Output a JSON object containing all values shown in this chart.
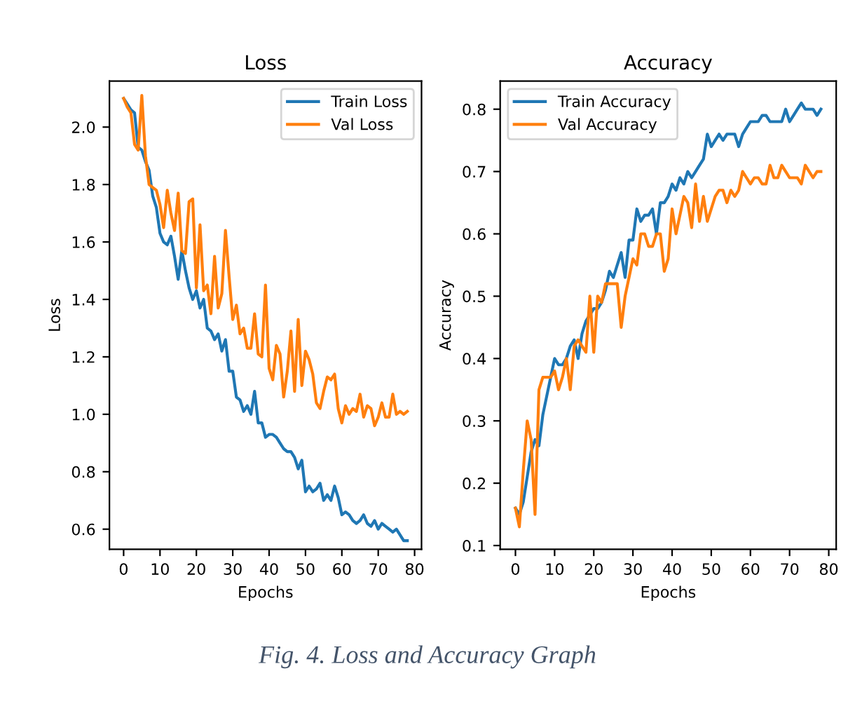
{
  "chart_data": [
    {
      "type": "line",
      "title": "Loss",
      "xlabel": "Epochs",
      "ylabel": "Loss",
      "legend": "top right",
      "grid": false,
      "marker": "none",
      "line_style": "solid",
      "x": [
        0,
        1,
        2,
        3,
        4,
        5,
        6,
        7,
        8,
        9,
        10,
        11,
        12,
        13,
        14,
        15,
        16,
        17,
        18,
        19,
        20,
        21,
        22,
        23,
        24,
        25,
        26,
        27,
        28,
        29,
        30,
        31,
        32,
        33,
        34,
        35,
        36,
        37,
        38,
        39,
        40,
        41,
        42,
        43,
        44,
        45,
        46,
        47,
        48,
        49,
        50,
        51,
        52,
        53,
        54,
        55,
        56,
        57,
        58,
        59,
        60,
        61,
        62,
        63,
        64,
        65,
        66,
        67,
        68,
        69,
        70,
        71,
        72,
        73,
        74,
        75,
        76,
        77,
        78
      ],
      "xlim": [
        -3.9,
        81.9
      ],
      "xticks": [
        0,
        10,
        20,
        30,
        40,
        50,
        60,
        70,
        80
      ],
      "ylim": [
        0.53,
        2.16
      ],
      "yticks": [
        0.6,
        0.8,
        {
          "value": 1.0,
          "label": "1.0"
        },
        1.2,
        1.4,
        1.6,
        1.8,
        {
          "value": 2.0,
          "label": "2.0"
        }
      ],
      "series": [
        {
          "name": "Train Loss",
          "color": "#1f77b4",
          "values": [
            2.1,
            2.08,
            2.06,
            2.05,
            1.93,
            1.92,
            1.88,
            1.85,
            1.76,
            1.72,
            1.63,
            1.6,
            1.59,
            1.62,
            1.55,
            1.47,
            1.57,
            1.5,
            1.44,
            1.4,
            1.43,
            1.37,
            1.4,
            1.3,
            1.29,
            1.26,
            1.28,
            1.22,
            1.26,
            1.15,
            1.15,
            1.06,
            1.05,
            1.01,
            1.03,
            1.0,
            1.08,
            0.97,
            0.97,
            0.92,
            0.93,
            0.93,
            0.92,
            0.9,
            0.88,
            0.87,
            0.87,
            0.85,
            0.81,
            0.84,
            0.73,
            0.75,
            0.73,
            0.74,
            0.76,
            0.7,
            0.72,
            0.7,
            0.75,
            0.71,
            0.65,
            0.66,
            0.65,
            0.63,
            0.62,
            0.63,
            0.65,
            0.62,
            0.61,
            0.63,
            0.6,
            0.62,
            0.61,
            0.6,
            0.59,
            0.6,
            0.58,
            0.56,
            0.56
          ]
        },
        {
          "name": "Val Loss",
          "color": "#ff7f0e",
          "values": [
            2.1,
            2.07,
            2.05,
            1.94,
            1.92,
            2.11,
            1.9,
            1.8,
            1.79,
            1.78,
            1.73,
            1.65,
            1.78,
            1.7,
            1.64,
            1.77,
            1.57,
            1.56,
            1.74,
            1.75,
            1.44,
            1.66,
            1.43,
            1.45,
            1.35,
            1.55,
            1.37,
            1.42,
            1.64,
            1.48,
            1.33,
            1.38,
            1.28,
            1.3,
            1.23,
            1.23,
            1.35,
            1.21,
            1.2,
            1.45,
            1.16,
            1.12,
            1.24,
            1.21,
            1.06,
            1.15,
            1.29,
            1.08,
            1.33,
            1.1,
            1.22,
            1.19,
            1.14,
            1.04,
            1.02,
            1.08,
            1.13,
            1.12,
            1.14,
            1.02,
            0.97,
            1.03,
            1.0,
            1.02,
            1.01,
            1.07,
            0.99,
            1.03,
            1.02,
            0.96,
            0.99,
            1.04,
            0.99,
            0.99,
            1.07,
            1.0,
            1.01,
            1.0,
            1.01
          ]
        }
      ],
      "annotations": [
        "Fig. 4. Loss and Accuracy Graph"
      ]
    },
    {
      "type": "line",
      "title": "Accuracy",
      "xlabel": "Epochs",
      "ylabel": "Accuracy",
      "legend": "top left",
      "grid": false,
      "marker": "none",
      "line_style": "solid",
      "x": [
        0,
        1,
        2,
        3,
        4,
        5,
        6,
        7,
        8,
        9,
        10,
        11,
        12,
        13,
        14,
        15,
        16,
        17,
        18,
        19,
        20,
        21,
        22,
        23,
        24,
        25,
        26,
        27,
        28,
        29,
        30,
        31,
        32,
        33,
        34,
        35,
        36,
        37,
        38,
        39,
        40,
        41,
        42,
        43,
        44,
        45,
        46,
        47,
        48,
        49,
        50,
        51,
        52,
        53,
        54,
        55,
        56,
        57,
        58,
        59,
        60,
        61,
        62,
        63,
        64,
        65,
        66,
        67,
        68,
        69,
        70,
        71,
        72,
        73,
        74,
        75,
        76,
        77,
        78
      ],
      "xlim": [
        -3.9,
        81.9
      ],
      "xticks": [
        0,
        10,
        20,
        30,
        40,
        50,
        60,
        70,
        80
      ],
      "ylim": [
        0.094,
        0.845
      ],
      "yticks": [
        0.1,
        0.2,
        0.3,
        0.4,
        0.5,
        0.6,
        0.7,
        0.8
      ],
      "series": [
        {
          "name": "Train Accuracy",
          "color": "#1f77b4",
          "values": [
            0.16,
            0.15,
            0.17,
            0.21,
            0.25,
            0.27,
            0.26,
            0.31,
            0.34,
            0.37,
            0.4,
            0.39,
            0.39,
            0.4,
            0.42,
            0.43,
            0.4,
            0.44,
            0.46,
            0.47,
            0.48,
            0.48,
            0.49,
            0.51,
            0.54,
            0.53,
            0.55,
            0.57,
            0.53,
            0.59,
            0.59,
            0.64,
            0.62,
            0.63,
            0.63,
            0.64,
            0.6,
            0.65,
            0.65,
            0.66,
            0.68,
            0.67,
            0.69,
            0.68,
            0.7,
            0.69,
            0.7,
            0.71,
            0.72,
            0.76,
            0.74,
            0.75,
            0.76,
            0.75,
            0.76,
            0.76,
            0.76,
            0.74,
            0.76,
            0.77,
            0.78,
            0.78,
            0.78,
            0.79,
            0.79,
            0.78,
            0.78,
            0.78,
            0.78,
            0.8,
            0.78,
            0.79,
            0.8,
            0.81,
            0.8,
            0.8,
            0.8,
            0.79,
            0.8
          ]
        },
        {
          "name": "Val Accuracy",
          "color": "#ff7f0e",
          "values": [
            0.16,
            0.13,
            0.22,
            0.3,
            0.27,
            0.15,
            0.35,
            0.37,
            0.37,
            0.37,
            0.38,
            0.35,
            0.37,
            0.4,
            0.35,
            0.42,
            0.43,
            0.42,
            0.41,
            0.5,
            0.41,
            0.5,
            0.49,
            0.52,
            0.52,
            0.52,
            0.52,
            0.45,
            0.5,
            0.53,
            0.56,
            0.55,
            0.6,
            0.6,
            0.58,
            0.58,
            0.6,
            0.6,
            0.54,
            0.56,
            0.64,
            0.6,
            0.63,
            0.66,
            0.65,
            0.61,
            0.68,
            0.62,
            0.66,
            0.62,
            0.64,
            0.66,
            0.67,
            0.67,
            0.65,
            0.67,
            0.66,
            0.67,
            0.7,
            0.69,
            0.68,
            0.69,
            0.69,
            0.68,
            0.68,
            0.71,
            0.69,
            0.69,
            0.71,
            0.7,
            0.69,
            0.69,
            0.69,
            0.68,
            0.71,
            0.7,
            0.69,
            0.7,
            0.7
          ]
        }
      ]
    }
  ]
}
